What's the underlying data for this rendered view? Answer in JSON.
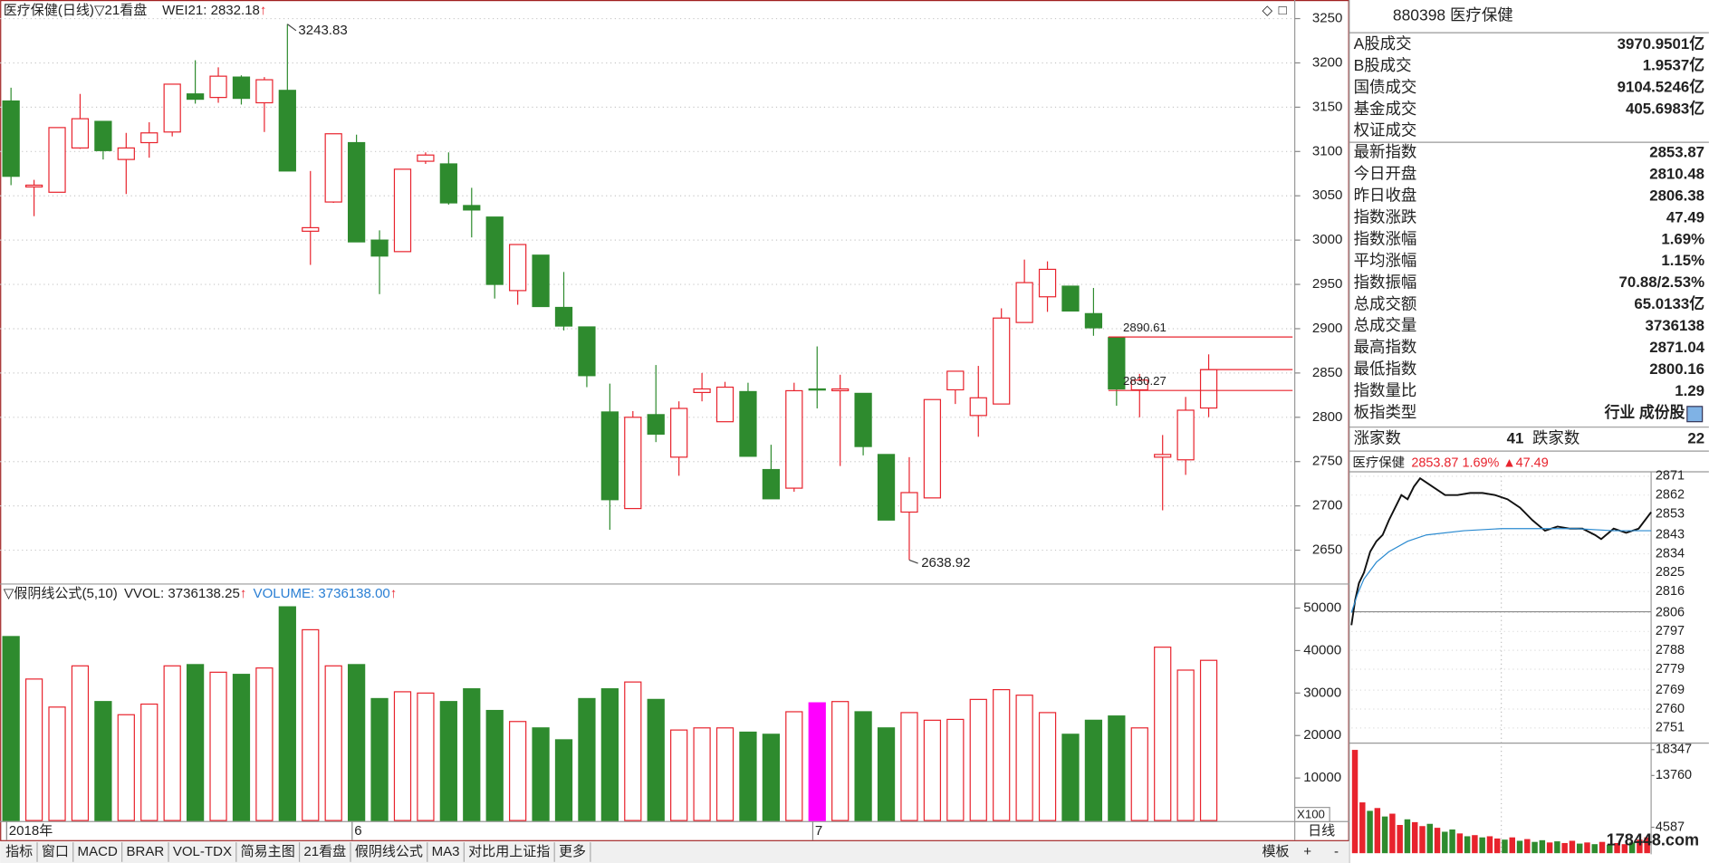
{
  "chart_data": [
    {
      "type": "candlestick",
      "title": "医疗保健(日线)",
      "subtitle": "▽21看盘",
      "readouts": [
        {
          "text": "WEI21: 2832.18",
          "color": "#222222",
          "arrow": "↑"
        }
      ],
      "arrow_color": "#e8232d",
      "categories": [
        "2018年",
        null,
        null,
        null,
        null,
        null,
        null,
        null,
        null,
        null,
        null,
        null,
        null,
        null,
        null,
        "6",
        null,
        null,
        null,
        null,
        null,
        null,
        null,
        null,
        null,
        null,
        null,
        null,
        null,
        null,
        null,
        null,
        null,
        null,
        null,
        "7",
        null,
        null,
        null,
        null,
        null,
        null,
        null,
        null,
        null,
        null,
        null,
        null,
        null,
        null,
        null,
        null,
        null
      ],
      "open": [
        3157,
        3060,
        3054,
        3104,
        3134,
        3091,
        3110,
        3122,
        3165,
        3161,
        3184,
        3155,
        3169,
        3010,
        3043,
        3110,
        3000,
        2987,
        3089,
        3086,
        3039,
        3026,
        2943,
        2983,
        2924,
        2902,
        2806,
        2697,
        2803,
        2755,
        2828,
        2795,
        2829,
        2741,
        2720,
        2832,
        2830,
        2827,
        2758,
        2693,
        2709,
        2831,
        2802,
        2815,
        2907,
        2936,
        2948,
        2917,
        2890,
        2831,
        2755,
        2752,
        2810.48
      ],
      "high": [
        3172,
        3068,
        3127,
        3165,
        3134,
        3121,
        3133,
        3176,
        3203,
        3195,
        3186,
        3184,
        3243.83,
        3078,
        3120,
        3119,
        3011,
        3080,
        3099,
        3099,
        3059,
        3026,
        2995,
        2983,
        2964,
        2902,
        2838,
        2807,
        2859,
        2818,
        2850,
        2840,
        2839,
        2769,
        2839,
        2880,
        2848,
        2827,
        2758,
        2755,
        2820,
        2852,
        2858,
        2923,
        2978,
        2976,
        2948,
        2946,
        2890.61,
        2849,
        2780,
        2823,
        2871.04
      ],
      "low": [
        3062,
        3027,
        3054,
        3103,
        3091,
        3052,
        3093,
        3117,
        3154,
        3155,
        3153,
        3122,
        3078,
        2972,
        3042,
        2998,
        2939,
        2987,
        3086,
        3040,
        3003,
        2934,
        2927,
        2925,
        2898,
        2834,
        2673,
        2697,
        2772,
        2734,
        2818,
        2795,
        2756,
        2708,
        2716,
        2810,
        2745,
        2757,
        2684,
        2638.92,
        2709,
        2815,
        2778,
        2815,
        2907,
        2919,
        2920,
        2892,
        2813,
        2800,
        2695,
        2735,
        2800.16
      ],
      "close": [
        3072,
        3062,
        3127,
        3137,
        3101,
        3104,
        3121,
        3176,
        3159,
        3185,
        3160,
        3181,
        3078,
        3014,
        3120,
        2998,
        2982,
        3080,
        3096,
        3042,
        3034,
        2950,
        2995,
        2925,
        2903,
        2847,
        2707,
        2800,
        2781,
        2810,
        2832,
        2834,
        2756,
        2708,
        2830,
        2831,
        2832,
        2767,
        2684,
        2715,
        2820,
        2852,
        2822,
        2912,
        2952,
        2967,
        2920,
        2901,
        2832,
        2842,
        2758,
        2808,
        2853.87
      ],
      "up_color": "#e8232d",
      "down_color": "#2e8b2e",
      "price_lines": [
        2890.61,
        2830.27
      ],
      "price_line_color": "#e8232d",
      "ylim": [
        2613,
        3271
      ],
      "yticks": [
        2650,
        2700,
        2750,
        2800,
        2850,
        2900,
        2950,
        3000,
        3050,
        3100,
        3150,
        3200,
        3250
      ],
      "grid": true
    },
    {
      "type": "bar",
      "title": "▽假阴线公式(5,10)",
      "readouts": [
        {
          "text": "VVOL: 3736138.25",
          "color": "#222222",
          "arrow": "↑"
        },
        {
          "text": "VOLUME: 3736138.00",
          "color": "#2a7fd4",
          "arrow": "↑"
        }
      ],
      "arrow_color": "#e8232d",
      "values": [
        43300,
        33300,
        26700,
        36400,
        28000,
        24900,
        27400,
        36400,
        36700,
        34900,
        34400,
        35900,
        50300,
        44900,
        36400,
        36700,
        28700,
        30300,
        30000,
        28000,
        31000,
        25900,
        23300,
        21800,
        19000,
        28700,
        31000,
        32600,
        28500,
        21300,
        21800,
        21800,
        20800,
        20300,
        25600,
        27700,
        28000,
        25600,
        21800,
        25400,
        23600,
        23800,
        28500,
        30800,
        29500,
        25400,
        20300,
        23600,
        24600,
        21800,
        40800,
        35400,
        37700
      ],
      "highlight_index": 35,
      "highlight_color": "#ff00ff",
      "unit_label": "X100",
      "ylim": [
        0,
        55400
      ],
      "yticks": [
        10000,
        20000,
        30000,
        40000,
        50000
      ]
    },
    {
      "type": "line",
      "title": "医疗保健",
      "readout": "2853.87  1.69%  ▲47.49",
      "readout_color": "#e8232d",
      "base_value": 2806.38,
      "up_color": "#e8232d",
      "down_color": "#2e8b2e",
      "xlim": [
        0,
        240
      ],
      "series": [
        {
          "color": "#111111",
          "x": [
            0,
            3,
            6,
            10,
            15,
            20,
            25,
            30,
            35,
            40,
            45,
            50,
            55,
            60,
            65,
            75,
            85,
            95,
            105,
            115,
            125,
            135,
            145,
            155,
            165,
            175,
            185,
            195,
            200,
            210,
            220,
            230,
            240
          ],
          "values": [
            2800,
            2812,
            2820,
            2825,
            2835,
            2840,
            2843,
            2850,
            2856,
            2862,
            2860,
            2866,
            2870,
            2868,
            2866,
            2862,
            2862,
            2863,
            2863,
            2862,
            2860,
            2856,
            2850,
            2845,
            2847,
            2846,
            2846,
            2843,
            2841,
            2846,
            2844,
            2846,
            2853.87
          ]
        },
        {
          "color": "#2a8ad0",
          "x": [
            0,
            5,
            10,
            20,
            30,
            45,
            60,
            90,
            120,
            150,
            180,
            210,
            240
          ],
          "values": [
            2806,
            2815,
            2822,
            2830,
            2835,
            2840,
            2843,
            2845,
            2846,
            2846,
            2846,
            2845,
            2845
          ]
        }
      ],
      "ylim": [
        2744.8,
        2873.6
      ],
      "yticks": [
        2871,
        2862,
        2853,
        2843,
        2834,
        2825,
        2816,
        2806,
        2797,
        2788,
        2779,
        2769,
        2760,
        2751
      ]
    },
    {
      "type": "bar",
      "values": [
        18300,
        9000,
        7500,
        8000,
        6500,
        7000,
        5000,
        6000,
        5500,
        4800,
        5200,
        4500,
        3800,
        4200,
        3500,
        3000,
        3200,
        2800,
        3000,
        2600,
        2400,
        2800,
        2200,
        2500,
        2000,
        2300,
        1900,
        2100,
        1800,
        2200,
        1700,
        1900,
        1600,
        2000,
        1500,
        1800,
        1600,
        1900,
        2400,
        2800
      ],
      "colors": [
        "#e8232d",
        "#e8232d",
        "#2e8b2e",
        "#e8232d",
        "#2e8b2e",
        "#e8232d",
        "#e8232d",
        "#2e8b2e",
        "#e8232d",
        "#e8232d",
        "#2e8b2e",
        "#e8232d",
        "#2e8b2e",
        "#2e8b2e",
        "#e8232d",
        "#2e8b2e",
        "#e8232d",
        "#2e8b2e",
        "#e8232d",
        "#e8232d",
        "#2e8b2e",
        "#e8232d",
        "#2e8b2e",
        "#e8232d",
        "#2e8b2e",
        "#2e8b2e",
        "#e8232d",
        "#2e8b2e",
        "#e8232d",
        "#e8232d",
        "#2e8b2e",
        "#e8232d",
        "#2e8b2e",
        "#e8232d",
        "#2e8b2e",
        "#e8232d",
        "#e8232d",
        "#2e8b2e",
        "#e8232d",
        "#e8232d"
      ],
      "ylim": [
        0,
        19300
      ],
      "yticks": [
        18347,
        13760,
        4587
      ]
    }
  ],
  "quote_panel": {
    "header": "880398 医疗保健",
    "rows": [
      {
        "label": "A股成交",
        "value": "3970.9501亿",
        "color": "#222222"
      },
      {
        "label": "B股成交",
        "value": "1.9537亿",
        "color": "#222222"
      },
      {
        "label": "国债成交",
        "value": "9104.5246亿",
        "color": "#222222"
      },
      {
        "label": "基金成交",
        "value": "405.6983亿",
        "color": "#222222"
      },
      {
        "label": "权证成交"
      },
      {
        "label": "最新指数",
        "value": "2853.87",
        "color": "#e8232d"
      },
      {
        "label": "今日开盘",
        "value": "2810.48",
        "color": "#e8232d"
      },
      {
        "label": "昨日收盘",
        "value": "2806.38",
        "color": "#222222"
      },
      {
        "label": "指数涨跌",
        "value": "47.49",
        "color": "#e8232d"
      },
      {
        "label": "指数涨幅",
        "value": "1.69%",
        "color": "#e8232d"
      },
      {
        "label": "平均涨幅",
        "value": "1.15%",
        "color": "#e8232d"
      },
      {
        "label": "指数振幅",
        "value": "70.88/2.53%",
        "color": "#222222"
      },
      {
        "label": "总成交额",
        "value": "65.0133亿",
        "color": "#222222"
      },
      {
        "label": "总成交量",
        "value": "3736138",
        "color": "#222222"
      },
      {
        "label": "最高指数",
        "value": "2871.04",
        "color": "#e8232d"
      },
      {
        "label": "最低指数",
        "value": "2800.16",
        "color": "#2e8b2e"
      },
      {
        "label": "指数量比",
        "value": "1.29",
        "color": "#e8232d"
      },
      {
        "label": "板指类型",
        "value": "行业 成份股",
        "color": "#222222"
      }
    ],
    "breadth": {
      "up_label": "涨家数",
      "up": 41,
      "down_label": "跌家数",
      "down": 22
    }
  },
  "toolbar": {
    "tabs": [
      "指标",
      "窗口",
      "MACD",
      "BRAR",
      "VOL-TDX",
      "简易主图",
      "21看盘",
      "假阴线公式",
      "MA3",
      "对比用上证指",
      "更多"
    ],
    "active_index": 7,
    "active_color": "#e8232d",
    "template": "模板",
    "period": "日线",
    "zoom_in": "+",
    "zoom_out": "-"
  },
  "watermark": "178448.com"
}
